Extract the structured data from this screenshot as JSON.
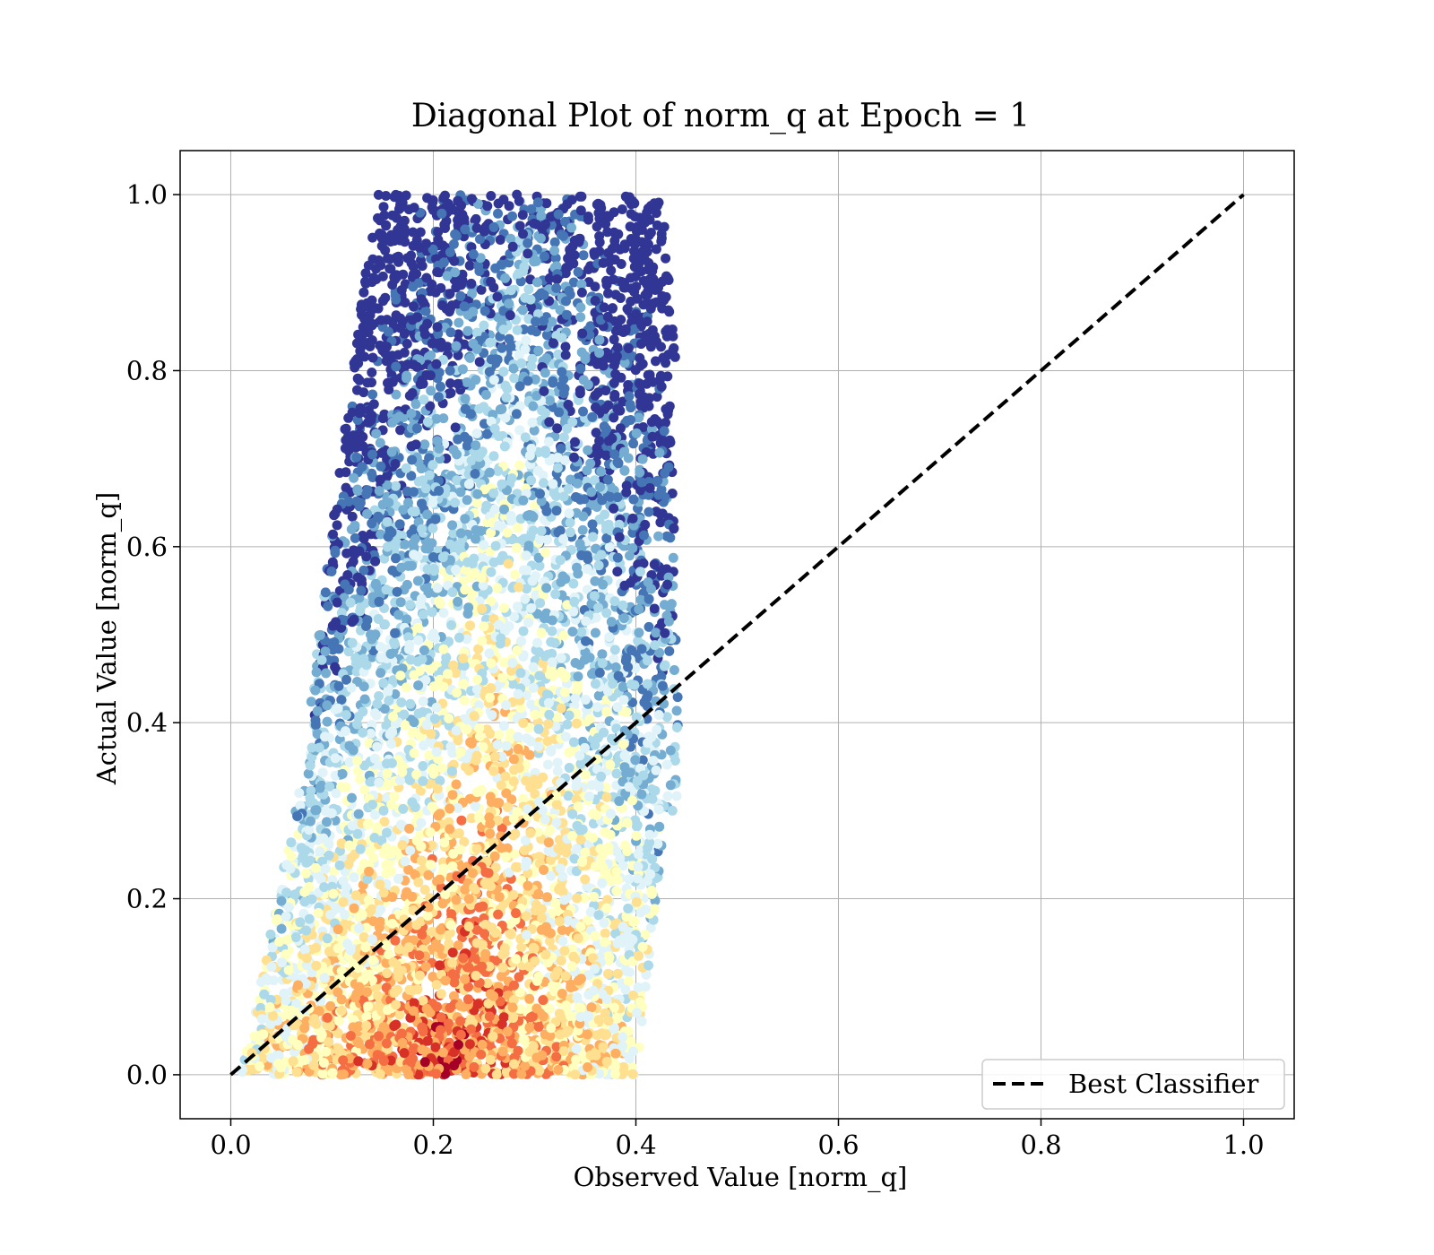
{
  "chart_data": {
    "type": "scatter",
    "title": "Diagonal Plot of norm_q at Epoch = 1",
    "xlabel": "Observed Value [norm_q]",
    "ylabel": "Actual Value [norm_q]",
    "xlim": [
      -0.05,
      1.05
    ],
    "ylim": [
      -0.05,
      1.05
    ],
    "xticks": [
      "0.0",
      "0.2",
      "0.4",
      "0.6",
      "0.8",
      "1.0"
    ],
    "yticks": [
      "0.0",
      "0.2",
      "0.4",
      "0.6",
      "0.8",
      "1.0"
    ],
    "grid": true,
    "colormap": "RdYlBu",
    "point_color_note": "",
    "scatter_envelope": {
      "x_min": 0.01,
      "bottom_x_max": 0.4,
      "mid_x_max": 0.44,
      "top_x_range": [
        0.13,
        0.43
      ],
      "y_range": [
        0.0,
        1.0
      ]
    },
    "series": [
      {
        "name": "Best Classifier",
        "type": "line",
        "style": "dashed",
        "color": "#000000",
        "x": [
          0.0,
          1.0
        ],
        "y": [
          0.0,
          1.0
        ]
      }
    ],
    "legend": {
      "position": "bottom-right",
      "entries": [
        "Best Classifier"
      ]
    }
  }
}
